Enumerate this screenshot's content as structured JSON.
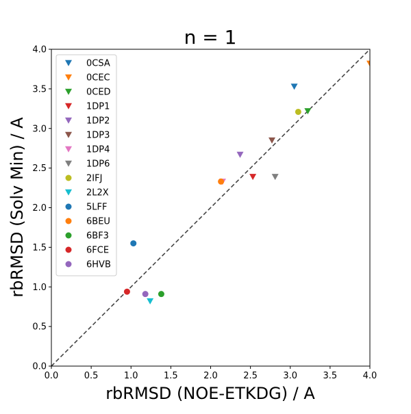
{
  "chart_data": {
    "type": "scatter",
    "title": "n = 1",
    "xlabel": "rbRMSD (NOE-ETKDG) / A",
    "ylabel": "rbRMSD (Solv Min) / A",
    "xlim": [
      0.0,
      4.0
    ],
    "ylim": [
      0.0,
      4.0
    ],
    "x_ticks": [
      "0.0",
      "0.5",
      "1.0",
      "1.5",
      "2.0",
      "2.5",
      "3.0",
      "3.5",
      "4.0"
    ],
    "y_ticks": [
      "0.0",
      "0.5",
      "1.0",
      "1.5",
      "2.0",
      "2.5",
      "3.0",
      "3.5",
      "4.0"
    ],
    "grid": false,
    "legend_position": "top-left",
    "reference_line": {
      "style": "dashed",
      "color": "#444444",
      "from": [
        0.0,
        0.0
      ],
      "to": [
        4.0,
        4.0
      ]
    },
    "series": [
      {
        "name": "0CSA",
        "marker": "triangle-down",
        "color": "#1f77b4",
        "x": 3.05,
        "y": 3.53
      },
      {
        "name": "0CEC",
        "marker": "triangle-down",
        "color": "#ff7f0e",
        "x": 4.0,
        "y": 3.82
      },
      {
        "name": "0CED",
        "marker": "triangle-down",
        "color": "#2ca02c",
        "x": 3.22,
        "y": 3.22
      },
      {
        "name": "1DP1",
        "marker": "triangle-down",
        "color": "#d62728",
        "x": 2.53,
        "y": 2.39
      },
      {
        "name": "1DP2",
        "marker": "triangle-down",
        "color": "#9467bd",
        "x": 2.37,
        "y": 2.67
      },
      {
        "name": "1DP3",
        "marker": "triangle-down",
        "color": "#8c564b",
        "x": 2.77,
        "y": 2.85
      },
      {
        "name": "1DP4",
        "marker": "triangle-down",
        "color": "#e377c2",
        "x": 2.15,
        "y": 2.33
      },
      {
        "name": "1DP6",
        "marker": "triangle-down",
        "color": "#7f7f7f",
        "x": 2.81,
        "y": 2.39
      },
      {
        "name": "2IFJ",
        "marker": "circle",
        "color": "#bcbd22",
        "x": 3.1,
        "y": 3.21
      },
      {
        "name": "2L2X",
        "marker": "triangle-down",
        "color": "#17becf",
        "x": 1.24,
        "y": 0.82
      },
      {
        "name": "5LFF",
        "marker": "circle",
        "color": "#1f77b4",
        "x": 1.03,
        "y": 1.55
      },
      {
        "name": "6BEU",
        "marker": "circle",
        "color": "#ff7f0e",
        "x": 2.13,
        "y": 2.33
      },
      {
        "name": "6BF3",
        "marker": "circle",
        "color": "#2ca02c",
        "x": 1.38,
        "y": 0.91
      },
      {
        "name": "6FCE",
        "marker": "circle",
        "color": "#d62728",
        "x": 0.95,
        "y": 0.94
      },
      {
        "name": "6HVB",
        "marker": "circle",
        "color": "#9467bd",
        "x": 1.18,
        "y": 0.91
      }
    ]
  }
}
